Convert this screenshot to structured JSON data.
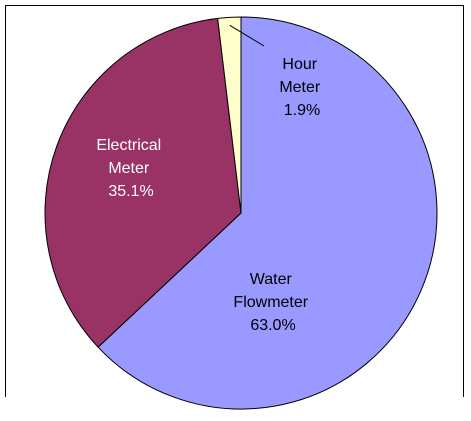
{
  "chart_data": {
    "type": "pie",
    "title": "",
    "slices": [
      {
        "name": "Water\nFlowmeter",
        "value": 63.0,
        "label_lines": [
          "Water",
          "Flowmeter"
        ],
        "percent_text": "63.0%",
        "color": "#9999ff"
      },
      {
        "name": "Electrical\nMeter",
        "value": 35.1,
        "label_lines": [
          "Electrical",
          "Meter"
        ],
        "percent_text": "35.1%",
        "color": "#993366"
      },
      {
        "name": "Hour\nMeter",
        "value": 1.9,
        "label_lines": [
          "Hour",
          "Meter"
        ],
        "percent_text": "1.9%",
        "color": "#ffffcc"
      }
    ],
    "start_angle": "12 o'clock",
    "direction": "clockwise",
    "legend": "none"
  }
}
